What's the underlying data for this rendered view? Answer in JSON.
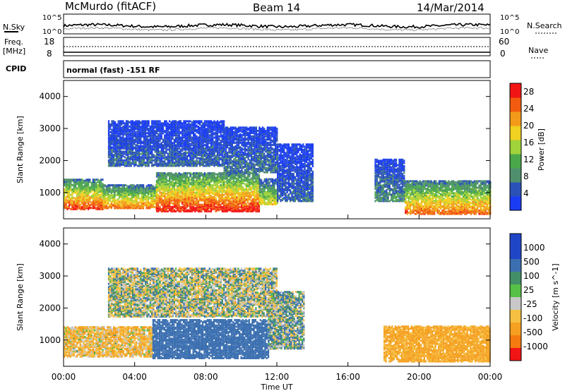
{
  "header": {
    "station": "McMurdo (fitACF)",
    "beam": "Beam 14",
    "date": "14/Mar/2014"
  },
  "top_panels": {
    "nsky_label": "N.Sky",
    "nsearch_label": "N.Search",
    "log_ticks_left": [
      "10^5",
      "10^0"
    ],
    "log_ticks_right": [
      "10^5",
      "10^0"
    ],
    "freq_label_line1": "Freq.",
    "freq_label_line2": "[MHz]",
    "freq_ticks": [
      "18",
      "8"
    ],
    "nave_label": "Nave",
    "nave_ticks": [
      "60",
      "0"
    ],
    "cpid_label": "CPID",
    "cpid_text": "normal (fast) -151 RF"
  },
  "colors": {
    "background": "#ffffff",
    "axis": "#000000",
    "power_scale": [
      "#1a3cf5",
      "#2b52b8",
      "#4f8f6e",
      "#4aa84a",
      "#a0d23a",
      "#f0d020",
      "#f39a1a",
      "#f25c10",
      "#f21515"
    ],
    "velocity_scale": [
      "#2046c8",
      "#3b6fb0",
      "#438f68",
      "#56c046",
      "#c8c8c8",
      "#f5c042",
      "#f5a020",
      "#f57a10",
      "#f21515"
    ]
  },
  "chart_data": [
    {
      "type": "heatmap",
      "name": "power",
      "ylabel": "Slant Range [km]",
      "xlabel": "Time UT",
      "x_ticks": [
        "00:00",
        "04:00",
        "08:00",
        "12:00",
        "16:00",
        "20:00",
        "00:00"
      ],
      "y_ticks": [
        1000,
        2000,
        3000,
        4000
      ],
      "ylim": [
        180,
        4500
      ],
      "colorbar_label": "Power [dB]",
      "colorbar_ticks": [
        4,
        8,
        12,
        16,
        20,
        24,
        28
      ],
      "colorbar_range": [
        0,
        30
      ],
      "regions": [
        {
          "t0": 0.0,
          "t1": 2.2,
          "r0": 450,
          "r1": 1400,
          "power_db": 27
        },
        {
          "t0": 2.2,
          "t1": 5.2,
          "r0": 480,
          "r1": 1200,
          "power_db": 24
        },
        {
          "t0": 5.2,
          "t1": 11.0,
          "r0": 380,
          "r1": 1600,
          "power_db": 29
        },
        {
          "t0": 11.0,
          "t1": 12.0,
          "r0": 600,
          "r1": 1400,
          "power_db": 18
        },
        {
          "t0": 12.0,
          "t1": 14.0,
          "r0": 700,
          "r1": 2500,
          "power_db": 6
        },
        {
          "t0": 17.5,
          "t1": 19.2,
          "r0": 700,
          "r1": 2000,
          "power_db": 9
        },
        {
          "t0": 19.2,
          "t1": 24.0,
          "r0": 300,
          "r1": 1350,
          "power_db": 25
        },
        {
          "t0": 2.5,
          "t1": 9.0,
          "r0": 1800,
          "r1": 3200,
          "power_db": 6
        },
        {
          "t0": 9.0,
          "t1": 12.0,
          "r0": 1600,
          "r1": 3000,
          "power_db": 7
        }
      ]
    },
    {
      "type": "heatmap",
      "name": "velocity",
      "ylabel": "Slant Range [km]",
      "xlabel": "Time UT",
      "x_ticks": [
        "00:00",
        "04:00",
        "08:00",
        "12:00",
        "16:00",
        "20:00",
        "00:00"
      ],
      "y_ticks": [
        1000,
        2000,
        3000,
        4000
      ],
      "ylim": [
        180,
        4500
      ],
      "colorbar_label": "Velocity [m s^-1]",
      "colorbar_ticks": [
        "1000",
        "500",
        "100",
        "25",
        "-25",
        "-100",
        "-500",
        "-1000"
      ],
      "regions": [
        {
          "t0": 0.0,
          "t1": 5.0,
          "r0": 450,
          "r1": 1400,
          "velocity": -80
        },
        {
          "t0": 5.0,
          "t1": 11.5,
          "r0": 400,
          "r1": 1600,
          "velocity": 300
        },
        {
          "t0": 11.5,
          "t1": 13.5,
          "r0": 700,
          "r1": 2500,
          "velocity": 60
        },
        {
          "t0": 18.0,
          "t1": 24.0,
          "r0": 300,
          "r1": 1400,
          "velocity": -150
        },
        {
          "t0": 2.5,
          "t1": 12.0,
          "r0": 1700,
          "r1": 3200,
          "velocity": 10
        }
      ]
    }
  ],
  "time_axis": {
    "label": "Time UT",
    "ticks": [
      "00:00",
      "04:00",
      "08:00",
      "12:00",
      "16:00",
      "20:00",
      "00:00"
    ]
  }
}
